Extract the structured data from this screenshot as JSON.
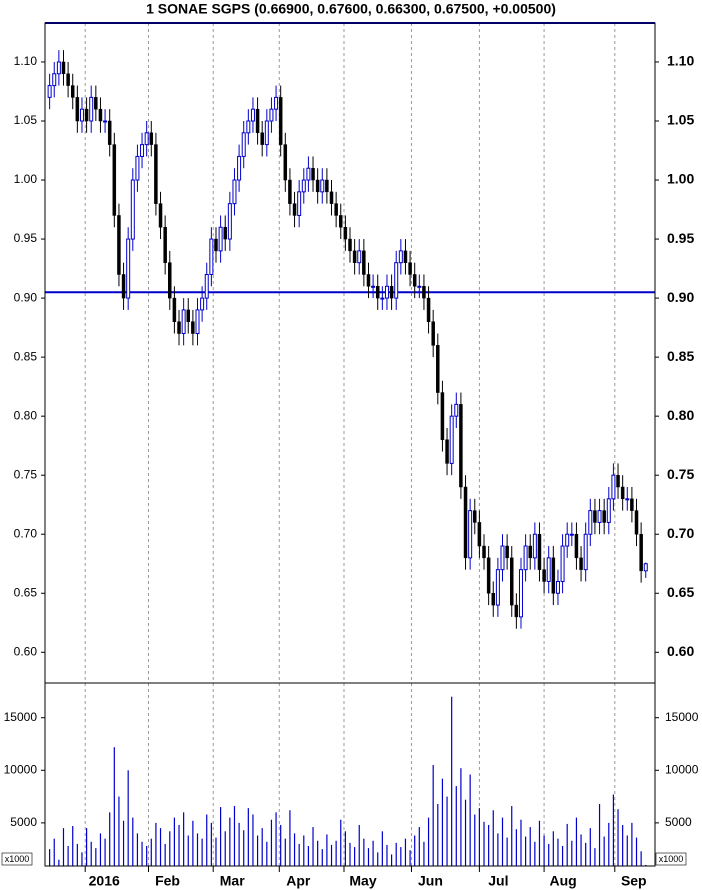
{
  "chart_data": {
    "type": "candlestick",
    "title": "1 SONAE SGPS (0.66900, 0.67600, 0.66300, 0.67500, +0.00500)",
    "open": [
      1.07,
      1.08,
      1.09,
      1.1,
      1.09,
      1.08,
      1.07,
      1.05,
      1.06,
      1.05,
      1.07,
      1.06,
      1.05,
      1.05,
      1.03,
      0.97,
      0.92,
      0.9,
      0.95,
      1.0,
      1.02,
      1.03,
      1.04,
      1.03,
      0.98,
      0.96,
      0.93,
      0.9,
      0.88,
      0.87,
      0.89,
      0.88,
      0.87,
      0.89,
      0.9,
      0.92,
      0.95,
      0.94,
      0.96,
      0.95,
      0.98,
      1.0,
      1.02,
      1.04,
      1.05,
      1.06,
      1.04,
      1.03,
      1.05,
      1.06,
      1.07,
      1.03,
      1.0,
      0.98,
      0.97,
      0.99,
      1.0,
      1.01,
      1.0,
      0.99,
      1.0,
      0.99,
      0.98,
      0.97,
      0.96,
      0.95,
      0.94,
      0.93,
      0.94,
      0.92,
      0.91,
      0.91,
      0.9,
      0.9,
      0.91,
      0.9,
      0.93,
      0.94,
      0.93,
      0.92,
      0.91,
      0.91,
      0.9,
      0.88,
      0.86,
      0.82,
      0.78,
      0.76,
      0.8,
      0.81,
      0.74,
      0.68,
      0.72,
      0.71,
      0.69,
      0.68,
      0.65,
      0.64,
      0.67,
      0.69,
      0.68,
      0.64,
      0.63,
      0.67,
      0.69,
      0.68,
      0.7,
      0.67,
      0.66,
      0.68,
      0.65,
      0.66,
      0.69,
      0.7,
      0.7,
      0.68,
      0.67,
      0.7,
      0.72,
      0.71,
      0.72,
      0.71,
      0.73,
      0.75,
      0.74,
      0.73,
      0.73,
      0.72,
      0.7,
      0.669
    ],
    "high": [
      1.09,
      1.1,
      1.11,
      1.11,
      1.1,
      1.09,
      1.08,
      1.07,
      1.07,
      1.08,
      1.08,
      1.07,
      1.06,
      1.06,
      1.04,
      0.98,
      0.93,
      0.96,
      1.01,
      1.03,
      1.04,
      1.05,
      1.05,
      1.04,
      0.99,
      0.97,
      0.94,
      0.91,
      0.89,
      0.9,
      0.9,
      0.89,
      0.9,
      0.91,
      0.93,
      0.96,
      0.96,
      0.97,
      0.97,
      0.99,
      1.01,
      1.03,
      1.05,
      1.06,
      1.07,
      1.07,
      1.05,
      1.06,
      1.07,
      1.08,
      1.08,
      1.04,
      1.01,
      0.99,
      1.0,
      1.01,
      1.02,
      1.02,
      1.01,
      1.01,
      1.01,
      1.0,
      0.99,
      0.98,
      0.97,
      0.96,
      0.95,
      0.95,
      0.95,
      0.93,
      0.92,
      0.92,
      0.91,
      0.92,
      0.92,
      0.94,
      0.95,
      0.95,
      0.94,
      0.93,
      0.92,
      0.92,
      0.91,
      0.89,
      0.87,
      0.83,
      0.79,
      0.81,
      0.82,
      0.82,
      0.75,
      0.73,
      0.73,
      0.72,
      0.7,
      0.69,
      0.66,
      0.68,
      0.7,
      0.7,
      0.69,
      0.65,
      0.68,
      0.7,
      0.7,
      0.71,
      0.71,
      0.68,
      0.69,
      0.69,
      0.67,
      0.7,
      0.71,
      0.71,
      0.71,
      0.69,
      0.71,
      0.73,
      0.73,
      0.73,
      0.73,
      0.74,
      0.76,
      0.76,
      0.75,
      0.74,
      0.74,
      0.73,
      0.71,
      0.676
    ],
    "low": [
      1.06,
      1.07,
      1.08,
      1.08,
      1.07,
      1.06,
      1.04,
      1.04,
      1.04,
      1.04,
      1.05,
      1.04,
      1.04,
      1.02,
      0.96,
      0.91,
      0.89,
      0.89,
      0.94,
      0.99,
      1.01,
      1.02,
      1.02,
      0.97,
      0.95,
      0.92,
      0.89,
      0.87,
      0.86,
      0.86,
      0.87,
      0.86,
      0.86,
      0.88,
      0.89,
      0.91,
      0.93,
      0.93,
      0.94,
      0.94,
      0.97,
      0.99,
      1.01,
      1.03,
      1.04,
      1.03,
      1.02,
      1.02,
      1.04,
      1.05,
      1.02,
      0.99,
      0.97,
      0.96,
      0.96,
      0.98,
      0.99,
      0.99,
      0.98,
      0.98,
      0.98,
      0.97,
      0.96,
      0.95,
      0.94,
      0.93,
      0.92,
      0.92,
      0.91,
      0.9,
      0.9,
      0.89,
      0.89,
      0.89,
      0.89,
      0.89,
      0.92,
      0.92,
      0.91,
      0.9,
      0.9,
      0.89,
      0.87,
      0.85,
      0.81,
      0.77,
      0.75,
      0.75,
      0.79,
      0.73,
      0.67,
      0.67,
      0.7,
      0.68,
      0.67,
      0.64,
      0.63,
      0.63,
      0.66,
      0.67,
      0.63,
      0.62,
      0.62,
      0.66,
      0.67,
      0.67,
      0.66,
      0.65,
      0.65,
      0.64,
      0.64,
      0.65,
      0.68,
      0.69,
      0.67,
      0.66,
      0.66,
      0.69,
      0.7,
      0.7,
      0.7,
      0.7,
      0.72,
      0.73,
      0.72,
      0.72,
      0.71,
      0.69,
      0.659,
      0.663
    ],
    "close": [
      1.08,
      1.09,
      1.1,
      1.09,
      1.08,
      1.07,
      1.05,
      1.06,
      1.05,
      1.07,
      1.06,
      1.05,
      1.05,
      1.03,
      0.97,
      0.92,
      0.9,
      0.95,
      1.0,
      1.02,
      1.03,
      1.04,
      1.03,
      0.98,
      0.96,
      0.93,
      0.9,
      0.88,
      0.87,
      0.89,
      0.88,
      0.87,
      0.89,
      0.9,
      0.92,
      0.95,
      0.94,
      0.96,
      0.95,
      0.98,
      1.0,
      1.02,
      1.04,
      1.05,
      1.06,
      1.04,
      1.03,
      1.05,
      1.06,
      1.07,
      1.03,
      1.0,
      0.98,
      0.97,
      0.99,
      1.0,
      1.01,
      1.0,
      0.99,
      1.0,
      0.99,
      0.98,
      0.97,
      0.96,
      0.95,
      0.94,
      0.93,
      0.94,
      0.92,
      0.91,
      0.91,
      0.9,
      0.9,
      0.91,
      0.9,
      0.93,
      0.94,
      0.93,
      0.92,
      0.91,
      0.91,
      0.9,
      0.88,
      0.86,
      0.82,
      0.78,
      0.76,
      0.8,
      0.81,
      0.74,
      0.68,
      0.72,
      0.71,
      0.69,
      0.68,
      0.65,
      0.64,
      0.67,
      0.69,
      0.68,
      0.64,
      0.63,
      0.67,
      0.69,
      0.68,
      0.7,
      0.67,
      0.66,
      0.68,
      0.65,
      0.66,
      0.69,
      0.7,
      0.7,
      0.68,
      0.67,
      0.7,
      0.72,
      0.71,
      0.72,
      0.71,
      0.73,
      0.75,
      0.74,
      0.73,
      0.73,
      0.72,
      0.7,
      0.669,
      0.675
    ],
    "volume": [
      2500,
      3500,
      1500,
      4500,
      2800,
      4700,
      3000,
      2200,
      4500,
      3200,
      2600,
      4000,
      3500,
      6000,
      12200,
      7500,
      5200,
      10000,
      5500,
      4000,
      3200,
      2800,
      3500,
      5000,
      4500,
      3000,
      4200,
      5500,
      4800,
      6000,
      3800,
      5200,
      4000,
      3500,
      5800,
      5000,
      3600,
      6500,
      4200,
      5500,
      6600,
      5000,
      4300,
      6400,
      5800,
      3800,
      4500,
      3200,
      5300,
      6000,
      4800,
      3500,
      6200,
      4000,
      3000,
      3800,
      2800,
      4600,
      3300,
      2500,
      3900,
      2900,
      3300,
      5300,
      4200,
      3100,
      2700,
      4800,
      3500,
      2600,
      3300,
      2200,
      4200,
      2900,
      2000,
      3100,
      2700,
      3500,
      2400,
      3800,
      4600,
      3200,
      5500,
      10500,
      6800,
      9200,
      7500,
      17000,
      8500,
      10200,
      7200,
      9600,
      5800,
      6400,
      5100,
      4800,
      6200,
      4000,
      5500,
      3600,
      6600,
      4400,
      5300,
      3700,
      4600,
      3200,
      5200,
      3800,
      3000,
      4200,
      3500,
      2800,
      4900,
      3300,
      5500,
      3900,
      3100,
      4500,
      2600,
      6800,
      3700,
      5000,
      7700,
      6300,
      4800,
      3800,
      5000,
      3600,
      2300,
      1000
    ],
    "up_color": "#0000cc",
    "down_color": "#000000",
    "volume_color": "#0000cc",
    "hline_color": "#0000cc",
    "hlines": [
      0.905,
      1.133
    ],
    "ylim": [
      0.574,
      1.133
    ],
    "yticks": [
      {
        "value": 0.6,
        "label": "0.60"
      },
      0.65,
      {
        "value": 0.7,
        "label": "0.70"
      },
      0.75,
      {
        "value": 0.8,
        "label": "0.80"
      },
      0.85,
      {
        "value": 0.9,
        "label": "0.90"
      },
      0.95,
      {
        "value": 1.0,
        "label": "1.00"
      },
      1.05,
      {
        "value": 1.1,
        "label": "1.10"
      }
    ],
    "y2lim": [
      900,
      18300
    ],
    "y2ticks": [
      5000,
      10000,
      15000
    ],
    "y2_unit": "x1000",
    "xlim": [
      -1,
      131
    ],
    "xticks": [
      {
        "value": 7.7,
        "label": "2016"
      },
      {
        "value": 21.4,
        "label": "Feb"
      },
      {
        "value": 35.4,
        "label": "Mar"
      },
      {
        "value": 49.7,
        "label": "Apr"
      },
      {
        "value": 63.7,
        "label": "May"
      },
      {
        "value": 78.3,
        "label": "Jun"
      },
      {
        "value": 93,
        "label": "Jul"
      },
      {
        "value": 107,
        "label": "Aug"
      },
      {
        "value": 122.3,
        "label": "Sep"
      }
    ],
    "grid": true
  }
}
